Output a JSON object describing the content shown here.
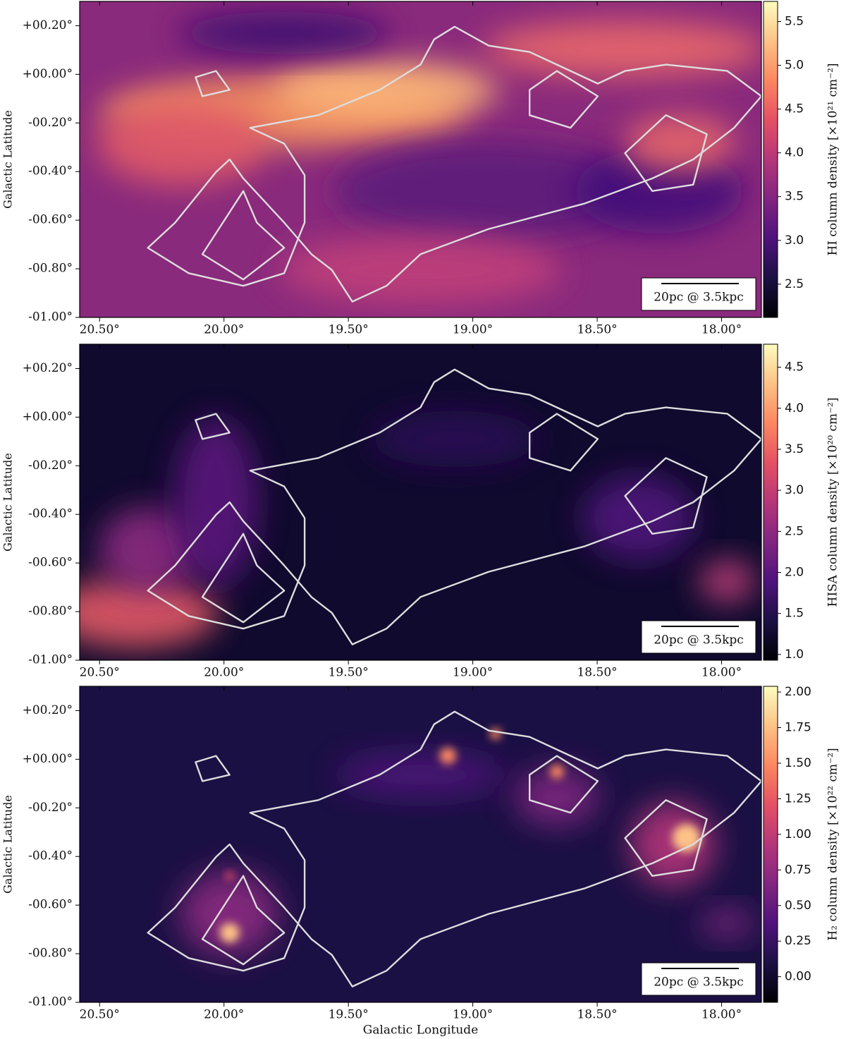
{
  "chart_data": [
    {
      "type": "heatmap",
      "ylabel": "Galactic Latitude",
      "xlim": [
        20.58,
        17.84
      ],
      "xticks": [
        {
          "value": 20.5,
          "label": "20.50°"
        },
        {
          "value": 20.0,
          "label": "20.00°"
        },
        {
          "value": 19.5,
          "label": "19.50°"
        },
        {
          "value": 19.0,
          "label": "19.00°"
        },
        {
          "value": 18.5,
          "label": "18.50°"
        },
        {
          "value": 18.0,
          "label": "18.00°"
        }
      ],
      "ylim": [
        -1.0,
        0.3
      ],
      "yticks": [
        {
          "value": 0.2,
          "label": "+00.20°"
        },
        {
          "value": 0.0,
          "label": "+00.00°"
        },
        {
          "value": -0.2,
          "label": "-00.20°"
        },
        {
          "value": -0.4,
          "label": "-00.40°"
        },
        {
          "value": -0.6,
          "label": "-00.60°"
        },
        {
          "value": -0.8,
          "label": "-00.80°"
        },
        {
          "value": -1.0,
          "label": "-01.00°"
        }
      ],
      "colormap": "magma",
      "colorbar": {
        "label": "HI column density [×10²¹ cm⁻²]",
        "lim": [
          2.12,
          5.73
        ],
        "ticks": [
          2.5,
          {
            "value": 3.0,
            "label": "3.0"
          },
          3.5,
          {
            "value": 4.0,
            "label": "4.0"
          },
          4.5,
          {
            "value": 5.0,
            "label": "5.0"
          },
          5.5
        ]
      },
      "scalebar": "20pc @ 3.5kpc"
    },
    {
      "type": "heatmap",
      "ylabel": "Galactic Latitude",
      "xlim": [
        20.58,
        17.84
      ],
      "xticks": [
        {
          "value": 20.5,
          "label": "20.50°"
        },
        {
          "value": 20.0,
          "label": "20.00°"
        },
        {
          "value": 19.5,
          "label": "19.50°"
        },
        {
          "value": 19.0,
          "label": "19.00°"
        },
        {
          "value": 18.5,
          "label": "18.50°"
        },
        {
          "value": 18.0,
          "label": "18.00°"
        }
      ],
      "ylim": [
        -1.0,
        0.3
      ],
      "yticks": [
        {
          "value": 0.2,
          "label": "+00.20°"
        },
        {
          "value": 0.0,
          "label": "+00.00°"
        },
        {
          "value": -0.2,
          "label": "-00.20°"
        },
        {
          "value": -0.4,
          "label": "-00.40°"
        },
        {
          "value": -0.6,
          "label": "-00.60°"
        },
        {
          "value": -0.8,
          "label": "-00.80°"
        },
        {
          "value": -1.0,
          "label": "-01.00°"
        }
      ],
      "colormap": "magma",
      "colorbar": {
        "label": "HISA column density [×10²⁰ cm⁻²]",
        "lim": [
          0.93,
          4.78
        ],
        "ticks": [
          {
            "value": 1.0,
            "label": "1.0"
          },
          1.5,
          {
            "value": 2.0,
            "label": "2.0"
          },
          2.5,
          {
            "value": 3.0,
            "label": "3.0"
          },
          3.5,
          {
            "value": 4.0,
            "label": "4.0"
          },
          4.5
        ]
      },
      "scalebar": "20pc @ 3.5kpc"
    },
    {
      "type": "heatmap",
      "ylabel": "Galactic Latitude",
      "xlabel": "Galactic Longitude",
      "xlim": [
        20.58,
        17.84
      ],
      "xticks": [
        {
          "value": 20.5,
          "label": "20.50°"
        },
        {
          "value": 20.0,
          "label": "20.00°"
        },
        {
          "value": 19.5,
          "label": "19.50°"
        },
        {
          "value": 19.0,
          "label": "19.00°"
        },
        {
          "value": 18.5,
          "label": "18.50°"
        },
        {
          "value": 18.0,
          "label": "18.00°"
        }
      ],
      "ylim": [
        -1.0,
        0.3
      ],
      "yticks": [
        {
          "value": 0.2,
          "label": "+00.20°"
        },
        {
          "value": 0.0,
          "label": "+00.00°"
        },
        {
          "value": -0.2,
          "label": "-00.20°"
        },
        {
          "value": -0.4,
          "label": "-00.40°"
        },
        {
          "value": -0.6,
          "label": "-00.60°"
        },
        {
          "value": -0.8,
          "label": "-00.80°"
        },
        {
          "value": -1.0,
          "label": "-01.00°"
        }
      ],
      "colormap": "magma",
      "colorbar": {
        "label": "H₂ column density [×10²² cm⁻²]",
        "lim": [
          -0.18,
          2.04
        ],
        "ticks": [
          {
            "value": 0.0,
            "label": "0.00"
          },
          0.25,
          {
            "value": 0.5,
            "label": "0.50"
          },
          0.75,
          {
            "value": 1.0,
            "label": "1.00"
          },
          1.25,
          {
            "value": 1.5,
            "label": "1.50"
          },
          1.75,
          {
            "value": 2.0,
            "label": "2.00"
          }
        ]
      },
      "scalebar": "20pc @ 3.5kpc"
    }
  ]
}
